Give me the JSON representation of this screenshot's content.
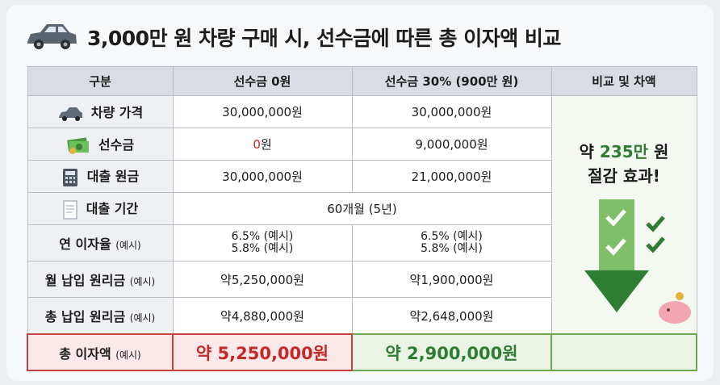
{
  "title": "3,000만 원 차량 구매 시, 선수금에 따른 총 이자액 비교",
  "table": {
    "header": [
      "구분",
      "선수금 0원",
      "선수금 30% (900만 원)",
      "비교 및 차액"
    ],
    "rows": [
      {
        "label": "차량 가격",
        "cells": [
          "30,000,000원",
          "30,000,000원"
        ]
      },
      {
        "label": "선수금",
        "cells": [
          {
            "emphasis": "0",
            "text": "원"
          },
          "9,000,000원"
        ]
      },
      {
        "label": "대출 원금",
        "cells": [
          "30,000,000원",
          "21,000,000원"
        ]
      },
      {
        "label": "대출 기간",
        "merged": "60개월 (5년)"
      },
      {
        "label": "연 이자율",
        "note": "(예시)",
        "cells": [
          [
            "6.5% (예시)",
            "5.8% (예시)"
          ],
          [
            "6.5% (예시)",
            "5.8% (예시)"
          ]
        ]
      },
      {
        "label": "월 납입 원리금",
        "note": "(예시)",
        "cells": [
          "약5,250,000원",
          "약1,900,000원"
        ]
      },
      {
        "label": "총 납입 원리금",
        "note": "(예시)",
        "cells": [
          "약4,880,000원",
          "약2,648,000원"
        ]
      },
      {
        "label": "총 이자액",
        "note": "(예시)",
        "cells": [
          "약 5,250,000원",
          "약 2,900,000원"
        ]
      }
    ]
  },
  "comparison": {
    "lead": "약",
    "amount": "235만",
    "unit": "원",
    "line2": "절감 효과!"
  }
}
